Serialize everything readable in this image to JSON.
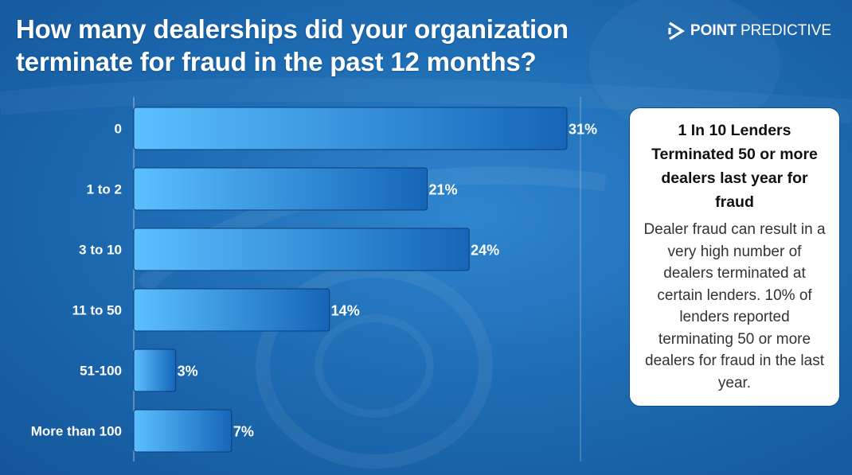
{
  "title": "How many dealerships did your organization terminate for fraud in the past 12 months?",
  "logo": {
    "bold": "POINT",
    "rest": "PREDICTIVE",
    "icon": "play-arrow-icon"
  },
  "callout": {
    "heading": "1 In 10 Lenders Terminated 50 or more dealers last year for fraud",
    "body": "Dealer fraud can result in a very high number of dealers terminated at certain lenders. 10% of lenders reported terminating 50 or more dealers for fraud in the last year."
  },
  "colors": {
    "background": "#1e6db4",
    "bar_light": "#5cc0ff",
    "bar_dark": "#1565b8",
    "bar_border": "#0b3f73",
    "callout_bg": "#ffffff"
  },
  "chart_data": {
    "type": "bar",
    "orientation": "horizontal",
    "categories": [
      "0",
      "1 to 2",
      "3 to 10",
      "11 to 50",
      "51-100",
      "More than 100"
    ],
    "values": [
      31,
      21,
      24,
      14,
      3,
      7
    ],
    "value_labels": [
      "31%",
      "21%",
      "24%",
      "14%",
      "3%",
      "7%"
    ],
    "unit": "%",
    "xlim": [
      0,
      31
    ],
    "grid": false,
    "legend": "none"
  }
}
